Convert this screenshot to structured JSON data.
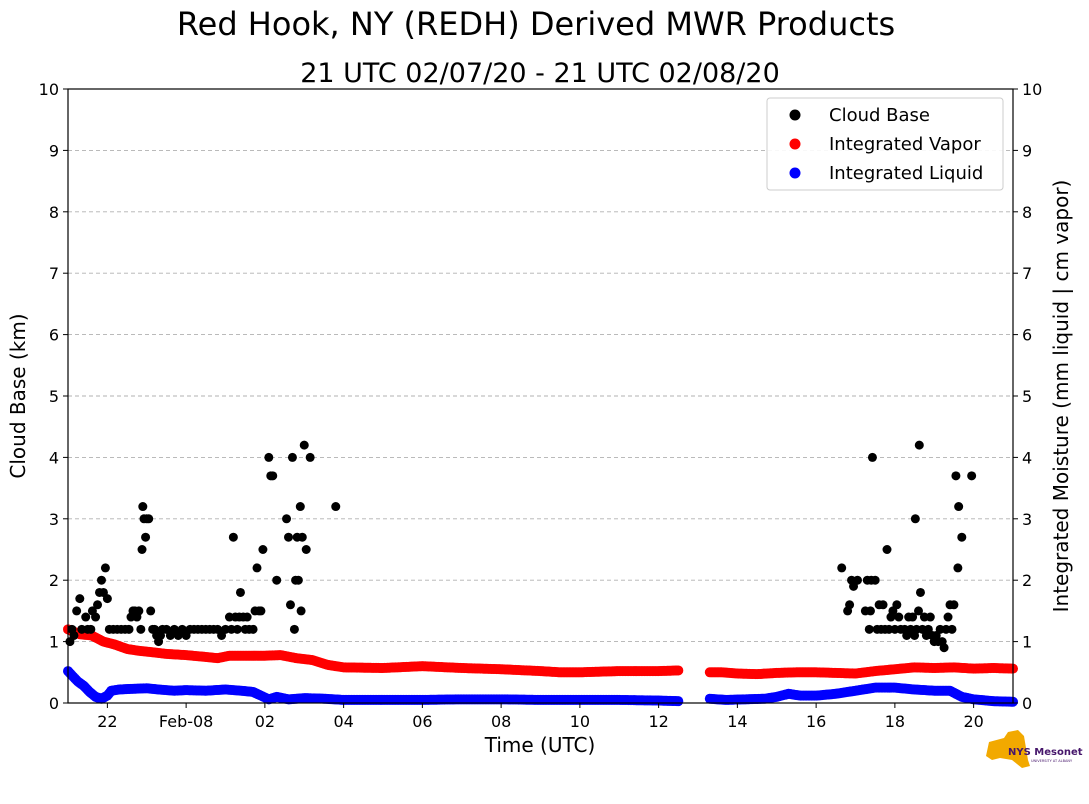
{
  "chart_data": {
    "type": "scatter",
    "title": "Red Hook, NY (REDH) Derived MWR Products",
    "subtitle": "21 UTC 02/07/20 - 21 UTC 02/08/20",
    "xlabel": "Time (UTC)",
    "ylabel_left": "Cloud Base (km)",
    "ylabel_right": "Integrated Moisture (mm liquid | cm vapor)",
    "x_unit": "hours since 00 UTC 02/07/20",
    "xlim": [
      21,
      45
    ],
    "ylim": [
      0,
      10
    ],
    "grid": "horizontal dashed",
    "legend_position": "top-right",
    "x_ticks": [
      {
        "x": 22,
        "label": "22"
      },
      {
        "x": 24,
        "label": "Feb-08"
      },
      {
        "x": 26,
        "label": "02"
      },
      {
        "x": 28,
        "label": "04"
      },
      {
        "x": 30,
        "label": "06"
      },
      {
        "x": 32,
        "label": "08"
      },
      {
        "x": 34,
        "label": "10"
      },
      {
        "x": 36,
        "label": "12"
      },
      {
        "x": 38,
        "label": "14"
      },
      {
        "x": 40,
        "label": "16"
      },
      {
        "x": 42,
        "label": "18"
      },
      {
        "x": 44,
        "label": "20"
      }
    ],
    "y_ticks": [
      "0",
      "1",
      "2",
      "3",
      "4",
      "5",
      "6",
      "7",
      "8",
      "9",
      "10"
    ],
    "series": [
      {
        "name": "Cloud Base",
        "color": "#000000",
        "points": [
          [
            21.05,
            1.0
          ],
          [
            21.1,
            1.2
          ],
          [
            21.15,
            1.1
          ],
          [
            21.22,
            1.5
          ],
          [
            21.3,
            1.7
          ],
          [
            21.35,
            1.2
          ],
          [
            21.45,
            1.4
          ],
          [
            21.5,
            1.2
          ],
          [
            21.58,
            1.2
          ],
          [
            21.62,
            1.5
          ],
          [
            21.7,
            1.4
          ],
          [
            21.75,
            1.6
          ],
          [
            21.8,
            1.8
          ],
          [
            21.85,
            2.0
          ],
          [
            21.9,
            1.8
          ],
          [
            21.95,
            2.2
          ],
          [
            22.0,
            1.7
          ],
          [
            22.05,
            1.2
          ],
          [
            22.15,
            1.2
          ],
          [
            22.25,
            1.2
          ],
          [
            22.35,
            1.2
          ],
          [
            22.45,
            1.2
          ],
          [
            22.55,
            1.2
          ],
          [
            22.6,
            1.4
          ],
          [
            22.65,
            1.5
          ],
          [
            22.7,
            1.5
          ],
          [
            22.75,
            1.4
          ],
          [
            22.8,
            1.5
          ],
          [
            22.85,
            1.2
          ],
          [
            22.88,
            2.5
          ],
          [
            22.9,
            3.2
          ],
          [
            22.93,
            3.0
          ],
          [
            22.97,
            2.7
          ],
          [
            23.0,
            3.0
          ],
          [
            23.05,
            3.0
          ],
          [
            23.1,
            1.5
          ],
          [
            23.15,
            1.2
          ],
          [
            23.2,
            1.2
          ],
          [
            23.25,
            1.1
          ],
          [
            23.3,
            1.0
          ],
          [
            23.35,
            1.1
          ],
          [
            23.4,
            1.2
          ],
          [
            23.5,
            1.2
          ],
          [
            23.6,
            1.1
          ],
          [
            23.7,
            1.2
          ],
          [
            23.8,
            1.1
          ],
          [
            23.9,
            1.2
          ],
          [
            24.0,
            1.1
          ],
          [
            24.1,
            1.2
          ],
          [
            24.2,
            1.2
          ],
          [
            24.3,
            1.2
          ],
          [
            24.4,
            1.2
          ],
          [
            24.5,
            1.2
          ],
          [
            24.6,
            1.2
          ],
          [
            24.7,
            1.2
          ],
          [
            24.8,
            1.2
          ],
          [
            24.9,
            1.1
          ],
          [
            25.0,
            1.2
          ],
          [
            25.1,
            1.4
          ],
          [
            25.15,
            1.2
          ],
          [
            25.2,
            2.7
          ],
          [
            25.25,
            1.4
          ],
          [
            25.3,
            1.2
          ],
          [
            25.35,
            1.4
          ],
          [
            25.38,
            1.8
          ],
          [
            25.45,
            1.4
          ],
          [
            25.5,
            1.2
          ],
          [
            25.55,
            1.4
          ],
          [
            25.6,
            1.2
          ],
          [
            25.7,
            1.2
          ],
          [
            25.75,
            1.5
          ],
          [
            25.8,
            2.2
          ],
          [
            25.85,
            1.5
          ],
          [
            25.9,
            1.5
          ],
          [
            25.95,
            2.5
          ],
          [
            26.1,
            4.0
          ],
          [
            26.15,
            3.7
          ],
          [
            26.2,
            3.7
          ],
          [
            26.3,
            2.0
          ],
          [
            26.55,
            3.0
          ],
          [
            26.6,
            2.7
          ],
          [
            26.65,
            1.6
          ],
          [
            26.7,
            4.0
          ],
          [
            26.75,
            1.2
          ],
          [
            26.78,
            2.0
          ],
          [
            26.82,
            2.7
          ],
          [
            26.85,
            2.0
          ],
          [
            26.9,
            3.2
          ],
          [
            26.92,
            1.5
          ],
          [
            26.95,
            2.7
          ],
          [
            27.0,
            4.2
          ],
          [
            27.05,
            2.5
          ],
          [
            27.15,
            4.0
          ],
          [
            27.8,
            3.2
          ],
          [
            40.65,
            2.2
          ],
          [
            40.8,
            1.5
          ],
          [
            40.85,
            1.6
          ],
          [
            40.9,
            2.0
          ],
          [
            40.95,
            1.9
          ],
          [
            41.05,
            2.0
          ],
          [
            41.25,
            1.5
          ],
          [
            41.3,
            2.0
          ],
          [
            41.35,
            1.2
          ],
          [
            41.38,
            1.5
          ],
          [
            41.4,
            2.0
          ],
          [
            41.43,
            4.0
          ],
          [
            41.5,
            2.0
          ],
          [
            41.55,
            1.2
          ],
          [
            41.6,
            1.6
          ],
          [
            41.65,
            1.2
          ],
          [
            41.7,
            1.6
          ],
          [
            41.75,
            1.2
          ],
          [
            41.8,
            2.5
          ],
          [
            41.85,
            1.2
          ],
          [
            41.9,
            1.4
          ],
          [
            41.95,
            1.5
          ],
          [
            42.0,
            1.2
          ],
          [
            42.05,
            1.6
          ],
          [
            42.1,
            1.4
          ],
          [
            42.15,
            1.2
          ],
          [
            42.25,
            1.2
          ],
          [
            42.3,
            1.1
          ],
          [
            42.35,
            1.4
          ],
          [
            42.4,
            1.2
          ],
          [
            42.45,
            1.4
          ],
          [
            42.5,
            1.1
          ],
          [
            42.52,
            3.0
          ],
          [
            42.55,
            1.2
          ],
          [
            42.6,
            1.5
          ],
          [
            42.62,
            4.2
          ],
          [
            42.65,
            1.8
          ],
          [
            42.7,
            1.2
          ],
          [
            42.75,
            1.4
          ],
          [
            42.8,
            1.1
          ],
          [
            42.85,
            1.2
          ],
          [
            42.9,
            1.4
          ],
          [
            42.95,
            1.1
          ],
          [
            43.0,
            1.0
          ],
          [
            43.05,
            1.1
          ],
          [
            43.1,
            1.0
          ],
          [
            43.15,
            1.2
          ],
          [
            43.2,
            1.0
          ],
          [
            43.25,
            0.9
          ],
          [
            43.3,
            1.2
          ],
          [
            43.35,
            1.4
          ],
          [
            43.4,
            1.6
          ],
          [
            43.45,
            1.2
          ],
          [
            43.5,
            1.6
          ],
          [
            43.55,
            3.7
          ],
          [
            43.6,
            2.2
          ],
          [
            43.62,
            3.2
          ],
          [
            43.7,
            2.7
          ],
          [
            43.95,
            3.7
          ]
        ]
      },
      {
        "name": "Integrated Vapor",
        "color": "#ff0000",
        "segments": [
          [
            [
              21.0,
              1.2
            ],
            [
              21.3,
              1.12
            ],
            [
              21.6,
              1.1
            ],
            [
              21.9,
              1.0
            ],
            [
              22.2,
              0.95
            ],
            [
              22.5,
              0.88
            ],
            [
              22.8,
              0.85
            ],
            [
              23.1,
              0.83
            ],
            [
              23.5,
              0.8
            ],
            [
              24.0,
              0.78
            ],
            [
              24.5,
              0.75
            ],
            [
              24.8,
              0.73
            ],
            [
              25.1,
              0.77
            ],
            [
              25.5,
              0.77
            ],
            [
              26.0,
              0.77
            ],
            [
              26.4,
              0.78
            ],
            [
              26.8,
              0.73
            ],
            [
              27.2,
              0.7
            ],
            [
              27.6,
              0.62
            ],
            [
              28.0,
              0.58
            ],
            [
              29.0,
              0.57
            ],
            [
              30.0,
              0.6
            ],
            [
              31.0,
              0.57
            ],
            [
              32.0,
              0.55
            ],
            [
              33.0,
              0.52
            ],
            [
              33.5,
              0.5
            ],
            [
              34.0,
              0.5
            ],
            [
              35.0,
              0.52
            ],
            [
              36.0,
              0.52
            ],
            [
              36.5,
              0.53
            ]
          ],
          [
            [
              37.3,
              0.5
            ],
            [
              37.6,
              0.5
            ],
            [
              38.0,
              0.48
            ],
            [
              38.5,
              0.47
            ],
            [
              39.0,
              0.49
            ],
            [
              39.5,
              0.5
            ],
            [
              40.0,
              0.5
            ],
            [
              40.5,
              0.49
            ],
            [
              41.0,
              0.48
            ],
            [
              41.5,
              0.52
            ],
            [
              42.0,
              0.55
            ],
            [
              42.5,
              0.58
            ],
            [
              43.0,
              0.57
            ],
            [
              43.5,
              0.58
            ],
            [
              44.0,
              0.56
            ],
            [
              44.5,
              0.57
            ],
            [
              45.0,
              0.56
            ]
          ]
        ]
      },
      {
        "name": "Integrated Liquid",
        "color": "#0000ff",
        "segments": [
          [
            [
              21.0,
              0.52
            ],
            [
              21.1,
              0.45
            ],
            [
              21.25,
              0.35
            ],
            [
              21.4,
              0.28
            ],
            [
              21.55,
              0.18
            ],
            [
              21.7,
              0.1
            ],
            [
              21.85,
              0.07
            ],
            [
              22.0,
              0.12
            ],
            [
              22.1,
              0.2
            ],
            [
              22.3,
              0.22
            ],
            [
              22.6,
              0.23
            ],
            [
              23.0,
              0.24
            ],
            [
              23.3,
              0.22
            ],
            [
              23.7,
              0.2
            ],
            [
              24.0,
              0.21
            ],
            [
              24.5,
              0.2
            ],
            [
              25.0,
              0.22
            ],
            [
              25.4,
              0.2
            ],
            [
              25.7,
              0.18
            ],
            [
              25.9,
              0.12
            ],
            [
              26.1,
              0.06
            ],
            [
              26.3,
              0.1
            ],
            [
              26.6,
              0.06
            ],
            [
              27.0,
              0.08
            ],
            [
              27.5,
              0.07
            ],
            [
              28.0,
              0.05
            ],
            [
              29.0,
              0.05
            ],
            [
              30.0,
              0.05
            ],
            [
              31.0,
              0.06
            ],
            [
              32.0,
              0.06
            ],
            [
              33.0,
              0.05
            ],
            [
              34.0,
              0.05
            ],
            [
              35.0,
              0.05
            ],
            [
              36.0,
              0.04
            ],
            [
              36.5,
              0.03
            ]
          ],
          [
            [
              37.3,
              0.07
            ],
            [
              37.7,
              0.05
            ],
            [
              38.2,
              0.06
            ],
            [
              38.7,
              0.07
            ],
            [
              39.0,
              0.1
            ],
            [
              39.3,
              0.15
            ],
            [
              39.6,
              0.12
            ],
            [
              40.0,
              0.12
            ],
            [
              40.5,
              0.15
            ],
            [
              41.0,
              0.2
            ],
            [
              41.5,
              0.25
            ],
            [
              42.0,
              0.25
            ],
            [
              42.5,
              0.22
            ],
            [
              43.0,
              0.2
            ],
            [
              43.4,
              0.2
            ],
            [
              43.7,
              0.1
            ],
            [
              44.0,
              0.06
            ],
            [
              44.5,
              0.03
            ],
            [
              45.0,
              0.02
            ]
          ]
        ]
      }
    ]
  },
  "logo": {
    "text": "NYS Mesonet",
    "subtext": "UNIVERSITY AT ALBANY"
  },
  "colors": {
    "cloud_base": "#000000",
    "vapor": "#ff0000",
    "liquid": "#0000ff",
    "grid": "#b0b0b0",
    "logo_gold": "#f2a900",
    "logo_purple": "#46166b"
  }
}
